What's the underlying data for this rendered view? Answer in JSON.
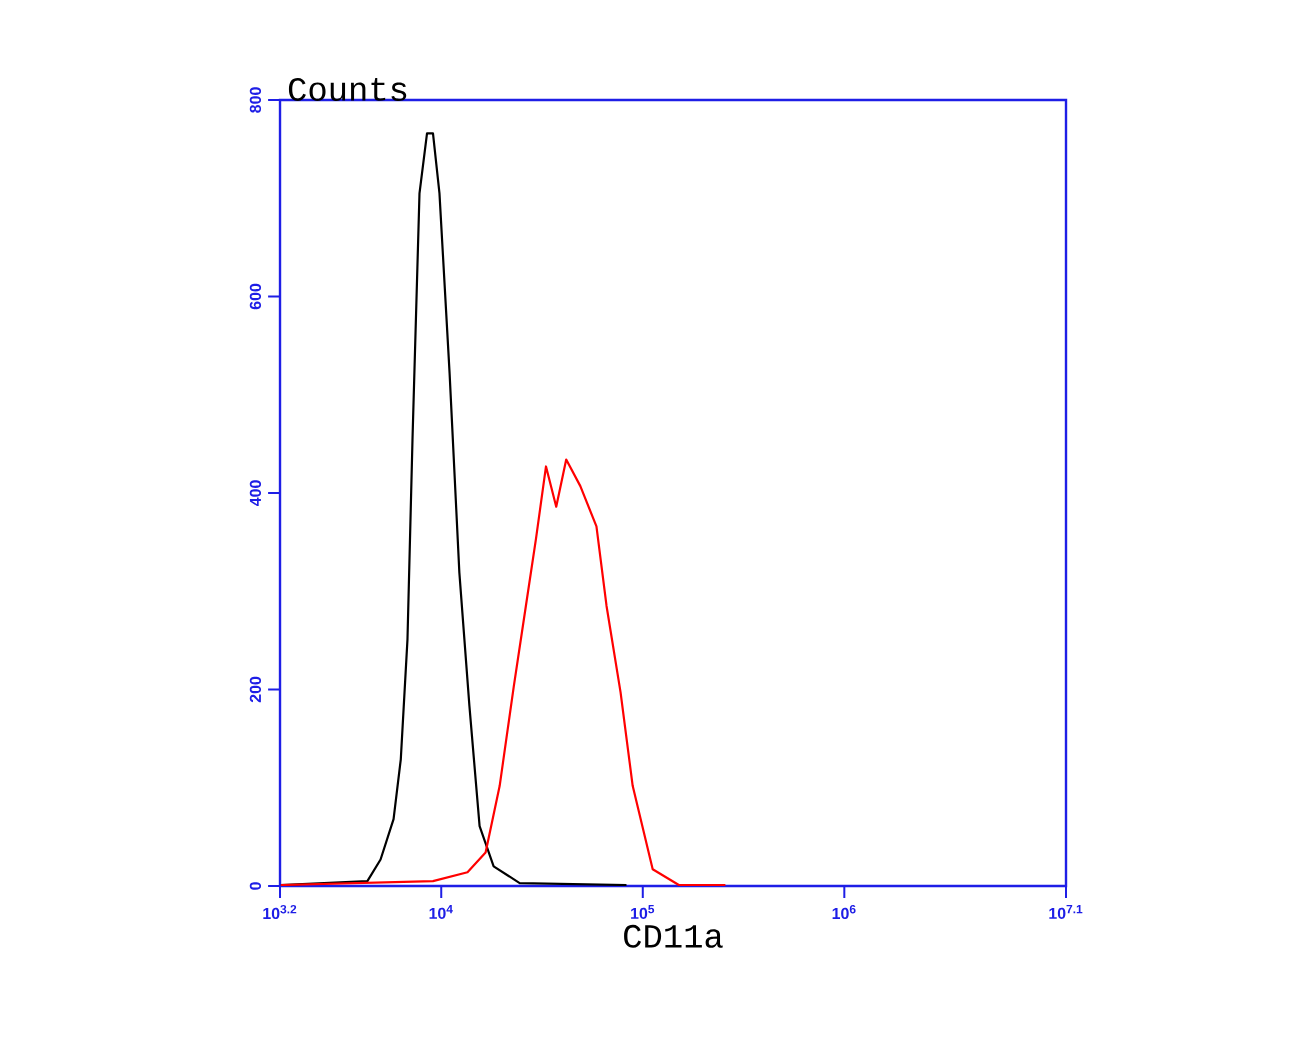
{
  "chart_data": {
    "type": "line",
    "xlabel": "CD11a",
    "ylabel": "Counts",
    "log": "x",
    "marker": "none",
    "line_style": "solid",
    "xlim": [
      1585,
      12589254
    ],
    "ylim": [
      0,
      800
    ],
    "xticks": [
      {
        "value": 1585,
        "label": "10$^{3.2}$"
      },
      {
        "value": 10000,
        "label": "10$^{4}$"
      },
      {
        "value": 100000,
        "label": "10$^{5}$"
      },
      {
        "value": 1000000,
        "label": "10$^{6}$"
      },
      {
        "value": 12589254,
        "label": "10$^{7.1}$"
      }
    ],
    "yticks": [
      0,
      200,
      400,
      600,
      800
    ],
    "series": [
      {
        "color": "#000000",
        "x": [
          1600,
          4300,
          5000,
          5800,
          6300,
          6800,
          7200,
          7800,
          8500,
          9100,
          9800,
          11000,
          12300,
          13800,
          15500,
          18200,
          24500,
          83000
        ],
        "values": [
          1,
          5,
          27,
          68,
          129,
          251,
          454,
          705,
          766,
          766,
          705,
          522,
          319,
          183,
          61,
          20,
          3,
          1
        ]
      },
      {
        "color": "#ff0000",
        "x": [
          1600,
          9100,
          13500,
          16600,
          19500,
          22900,
          26300,
          29500,
          33100,
          37200,
          41700,
          49000,
          58900,
          66100,
          77600,
          89100,
          112000,
          151000,
          257000
        ],
        "values": [
          1,
          5,
          14,
          34,
          102,
          203,
          285,
          353,
          427,
          386,
          434,
          407,
          366,
          285,
          197,
          102,
          17,
          1,
          1
        ]
      }
    ]
  }
}
